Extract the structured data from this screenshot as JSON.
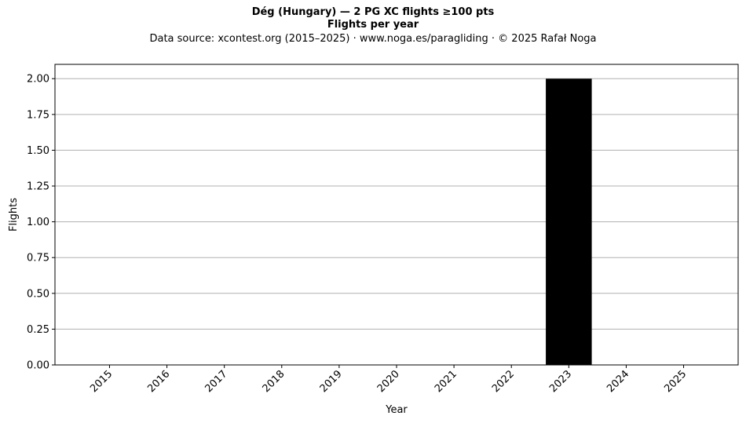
{
  "header": {
    "title": "Dég (Hungary)  —  2 PG XC flights ≥100 pts",
    "subtitle": "Flights per year",
    "source": "Data source: xcontest.org (2015–2025)  ·  www.noga.es/paragliding  ·  © 2025 Rafał Noga"
  },
  "chart_data": {
    "type": "bar",
    "title": "Dég (Hungary)  —  2 PG XC flights ≥100 pts",
    "subtitle": "Flights per year",
    "xlabel": "Year",
    "ylabel": "Flights",
    "categories": [
      "2015",
      "2016",
      "2017",
      "2018",
      "2019",
      "2020",
      "2021",
      "2022",
      "2023",
      "2024",
      "2025"
    ],
    "values": [
      0,
      0,
      0,
      0,
      0,
      0,
      0,
      0,
      2,
      0,
      0
    ],
    "ylim": [
      0,
      2.1
    ],
    "yticks": [
      "0.00",
      "0.25",
      "0.50",
      "0.75",
      "1.00",
      "1.25",
      "1.50",
      "1.75",
      "2.00"
    ],
    "grid": "horizontal",
    "legend": "none",
    "colors": {
      "bar": "#000000",
      "grid": "#b0b0b0",
      "axis": "#000000"
    }
  }
}
